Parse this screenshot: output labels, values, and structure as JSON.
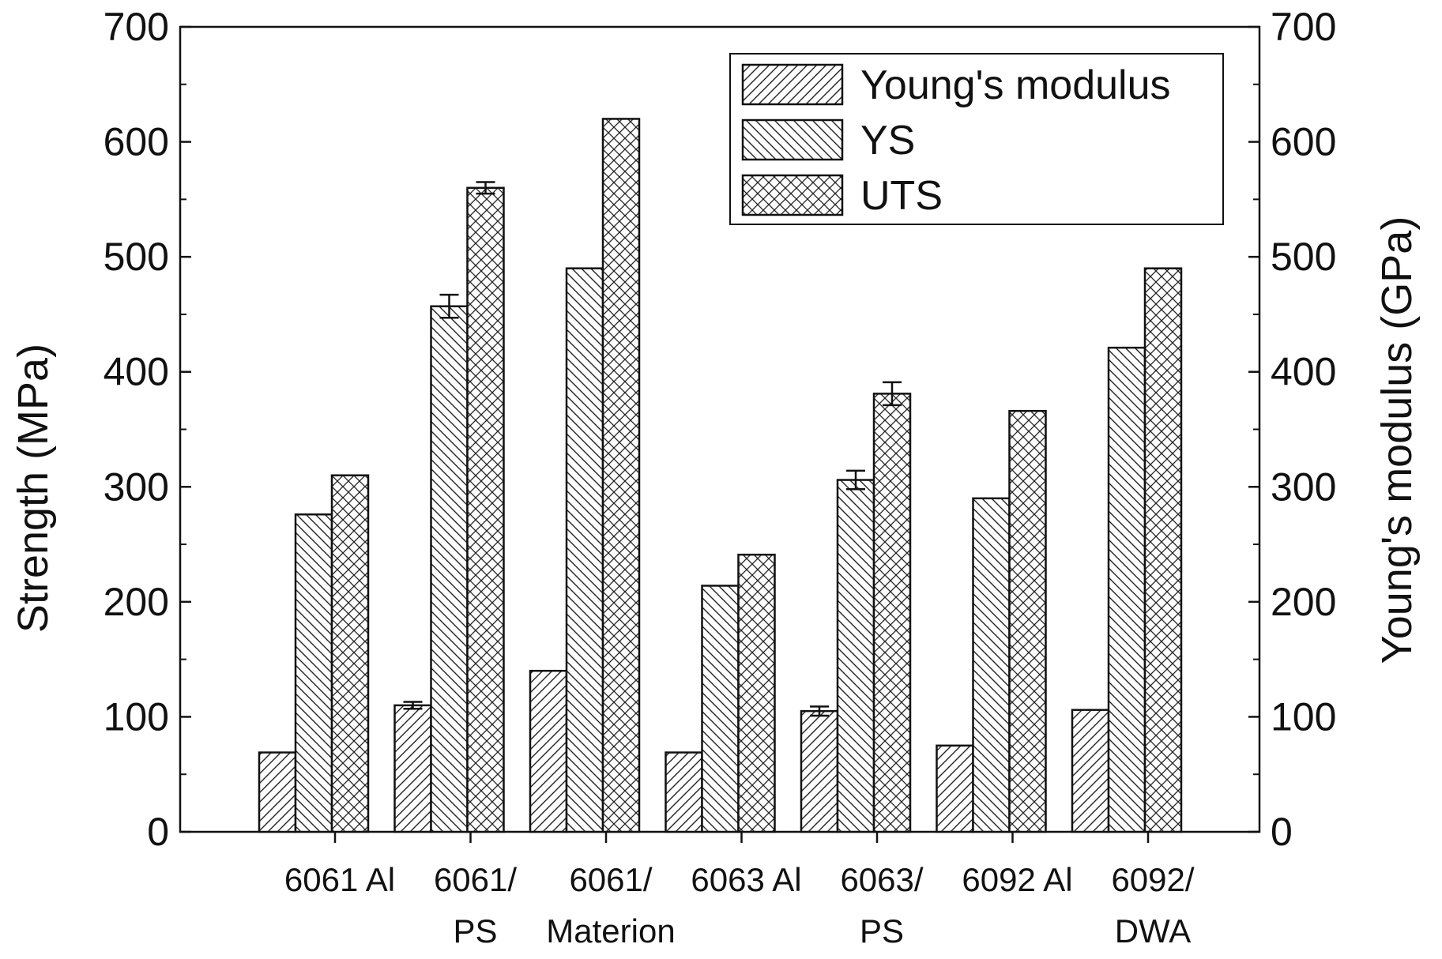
{
  "chart_data": {
    "type": "bar",
    "categories": [
      [
        "6061 Al"
      ],
      [
        "6061/",
        "PS"
      ],
      [
        "6061/",
        "Materion"
      ],
      [
        "6063 Al"
      ],
      [
        "6063/",
        "PS"
      ],
      [
        "6092 Al"
      ],
      [
        "6092/",
        "DWA"
      ]
    ],
    "series": [
      {
        "name": "Young's modulus",
        "axis": "right",
        "pattern": "diagonal-forward",
        "values": [
          69,
          110,
          140,
          69,
          105,
          75,
          106
        ],
        "errors": [
          null,
          3,
          null,
          null,
          4,
          null,
          null
        ]
      },
      {
        "name": "YS",
        "axis": "left",
        "pattern": "diagonal-back",
        "values": [
          276,
          457,
          490,
          214,
          306,
          290,
          421
        ],
        "errors": [
          null,
          10,
          null,
          null,
          8,
          null,
          null
        ]
      },
      {
        "name": "UTS",
        "axis": "left",
        "pattern": "crosshatch",
        "values": [
          310,
          560,
          620,
          241,
          381,
          366,
          490
        ],
        "errors": [
          null,
          5,
          null,
          null,
          10,
          null,
          null
        ]
      }
    ],
    "ylabel": "Strength (MPa)",
    "y2label": "Young's modulus (GPa)",
    "ylim": [
      0,
      700
    ],
    "y2lim": [
      0,
      700
    ],
    "yticks": [
      0,
      100,
      200,
      300,
      400,
      500,
      600,
      700
    ],
    "legend_position": "top-right",
    "grid": false
  }
}
